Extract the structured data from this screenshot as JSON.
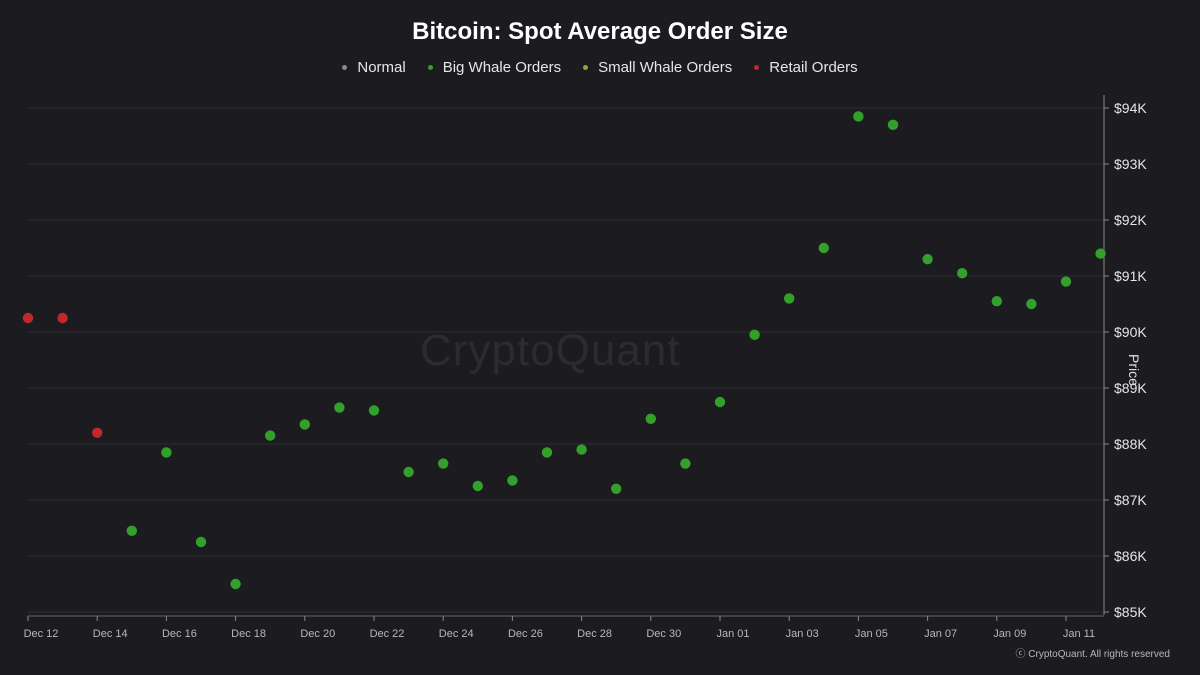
{
  "chart_data": {
    "type": "scatter",
    "title": "Bitcoin: Spot Average Order Size",
    "ylabel": "Price",
    "ylim": [
      85000,
      94000
    ],
    "y_ticks": [
      "$85K",
      "$86K",
      "$87K",
      "$88K",
      "$89K",
      "$90K",
      "$91K",
      "$92K",
      "$93K",
      "$94K"
    ],
    "y_tick_values": [
      85000,
      86000,
      87000,
      88000,
      89000,
      90000,
      91000,
      92000,
      93000,
      94000
    ],
    "x_ticks": [
      "Dec 12",
      "Dec 14",
      "Dec 16",
      "Dec 18",
      "Dec 20",
      "Dec 22",
      "Dec 24",
      "Dec 26",
      "Dec 28",
      "Dec 30",
      "Jan 01",
      "Jan 03",
      "Jan 05",
      "Jan 07",
      "Jan 09",
      "Jan 11"
    ],
    "grid": true,
    "legend_position": "top-center",
    "series": [
      {
        "name": "Normal",
        "color": "#8a8a8a",
        "points": []
      },
      {
        "name": "Big Whale Orders",
        "color": "#34a02c",
        "points": [
          {
            "x": "Dec 15",
            "y": 86450
          },
          {
            "x": "Dec 16",
            "y": 87850
          },
          {
            "x": "Dec 17",
            "y": 86250
          },
          {
            "x": "Dec 18",
            "y": 85500
          },
          {
            "x": "Dec 19",
            "y": 88150
          },
          {
            "x": "Dec 20",
            "y": 88350
          },
          {
            "x": "Dec 21",
            "y": 88650
          },
          {
            "x": "Dec 22",
            "y": 88600
          },
          {
            "x": "Dec 23",
            "y": 87500
          },
          {
            "x": "Dec 24",
            "y": 87650
          },
          {
            "x": "Dec 25",
            "y": 87250
          },
          {
            "x": "Dec 26",
            "y": 87350
          },
          {
            "x": "Dec 27",
            "y": 87850
          },
          {
            "x": "Dec 28",
            "y": 87900
          },
          {
            "x": "Dec 29",
            "y": 87200
          },
          {
            "x": "Dec 30",
            "y": 88450
          },
          {
            "x": "Dec 31",
            "y": 87650
          },
          {
            "x": "Jan 01",
            "y": 88750
          },
          {
            "x": "Jan 02",
            "y": 89950
          },
          {
            "x": "Jan 03",
            "y": 90600
          },
          {
            "x": "Jan 04",
            "y": 91500
          },
          {
            "x": "Jan 05",
            "y": 93850
          },
          {
            "x": "Jan 06",
            "y": 93700
          },
          {
            "x": "Jan 07",
            "y": 91300
          },
          {
            "x": "Jan 08",
            "y": 91050
          },
          {
            "x": "Jan 09",
            "y": 90550
          },
          {
            "x": "Jan 10",
            "y": 90500
          },
          {
            "x": "Jan 11",
            "y": 90900
          },
          {
            "x": "Jan 12",
            "y": 91400
          }
        ]
      },
      {
        "name": "Small Whale Orders",
        "color": "#8fa63a",
        "points": []
      },
      {
        "name": "Retail Orders",
        "color": "#c0282c",
        "points": [
          {
            "x": "Dec 12",
            "y": 90250
          },
          {
            "x": "Dec 13",
            "y": 90250
          },
          {
            "x": "Dec 14",
            "y": 88200
          }
        ]
      }
    ]
  },
  "watermark": "CryptoQuant",
  "footer": "ⓒ CryptoQuant. All rights reserved"
}
